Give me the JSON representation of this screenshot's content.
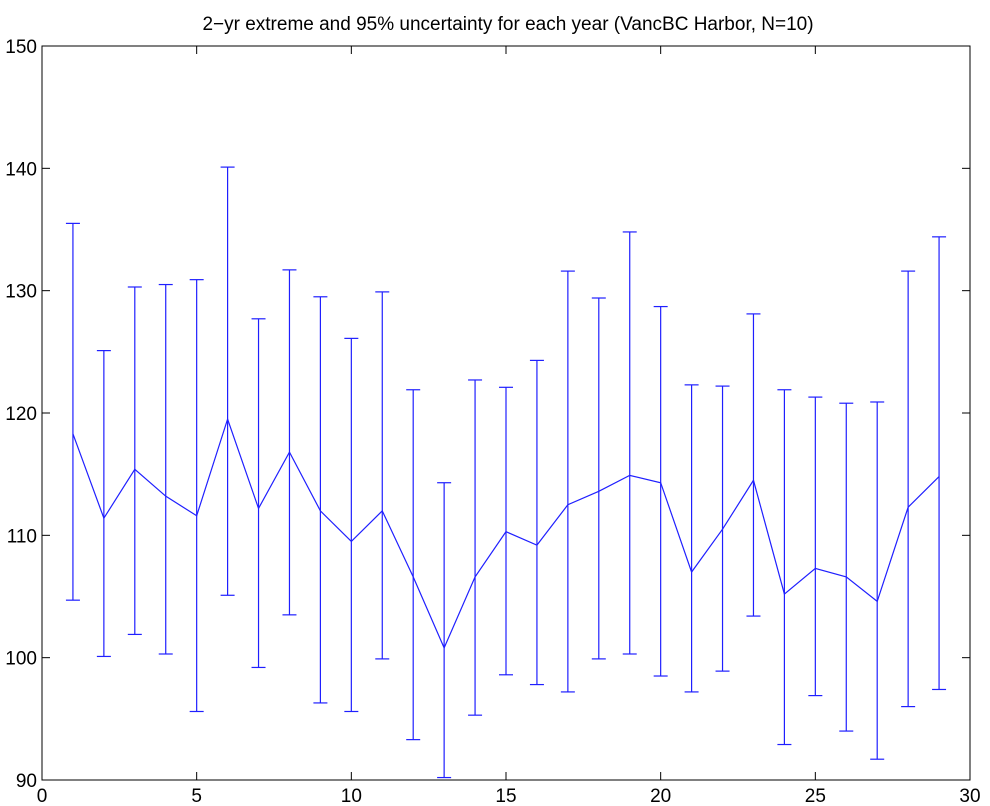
{
  "chart_data": {
    "type": "line",
    "title": "2−yr extreme and 95% uncertainty for each year (VancBC Harbor, N=10)",
    "xlabel": "",
    "ylabel": "",
    "xlim": [
      0,
      30
    ],
    "ylim": [
      90,
      150
    ],
    "xticks": [
      "0",
      "5",
      "10",
      "15",
      "20",
      "25",
      "30"
    ],
    "yticks": [
      "90",
      "100",
      "110",
      "120",
      "130",
      "140",
      "150"
    ],
    "grid": false,
    "series_color": "#1f1fff",
    "x": [
      1,
      2,
      3,
      4,
      5,
      6,
      7,
      8,
      9,
      10,
      11,
      12,
      13,
      14,
      15,
      16,
      17,
      18,
      19,
      20,
      21,
      22,
      23,
      24,
      25,
      26,
      27,
      28,
      29
    ],
    "y": [
      118.3,
      111.4,
      115.4,
      113.2,
      111.6,
      119.5,
      112.2,
      116.8,
      112.0,
      109.5,
      112.0,
      106.6,
      100.8,
      106.6,
      110.3,
      109.2,
      112.5,
      113.6,
      114.9,
      114.3,
      107.0,
      110.5,
      114.5,
      105.2,
      107.3,
      106.6,
      104.6,
      112.3,
      114.8
    ],
    "lower": [
      104.7,
      100.1,
      101.9,
      100.3,
      95.6,
      105.1,
      99.2,
      103.5,
      96.3,
      95.6,
      99.9,
      93.3,
      90.2,
      95.3,
      98.6,
      97.8,
      97.2,
      99.9,
      100.3,
      98.5,
      97.2,
      98.9,
      103.4,
      92.9,
      96.9,
      94.0,
      91.7,
      96.0,
      97.4
    ],
    "upper": [
      135.5,
      125.1,
      130.3,
      130.5,
      130.9,
      140.1,
      127.7,
      131.7,
      129.5,
      126.1,
      129.9,
      121.9,
      114.3,
      122.7,
      122.1,
      124.3,
      131.6,
      129.4,
      134.8,
      128.7,
      122.3,
      122.2,
      128.1,
      121.9,
      121.3,
      120.8,
      120.9,
      131.6,
      134.4
    ]
  }
}
